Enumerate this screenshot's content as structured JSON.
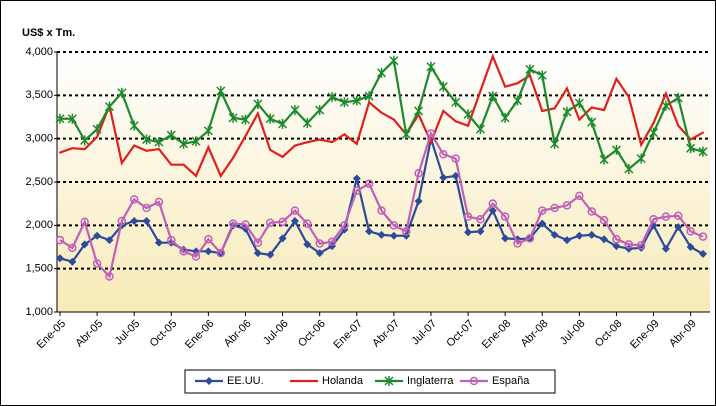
{
  "chart_data": {
    "type": "line",
    "y_label": "US$ x Tm.",
    "categories": [
      "Ene-05",
      null,
      null,
      "Abr-05",
      null,
      null,
      "Jul-05",
      null,
      null,
      "Oct-05",
      null,
      null,
      "Ene-06",
      null,
      null,
      "Abr-06",
      null,
      null,
      "Jul-06",
      null,
      null,
      "Oct-06",
      null,
      null,
      "Ene-07",
      null,
      null,
      "Abr-07",
      null,
      null,
      "Jul-07",
      null,
      null,
      "Oct-07",
      null,
      null,
      "Ene-08",
      null,
      null,
      "Abr-08",
      null,
      null,
      "Jul-08",
      null,
      null,
      "Oct-08",
      null,
      null,
      "Ene-09",
      null,
      null,
      "Abr-09",
      null
    ],
    "series": [
      {
        "name": "EE.UU.",
        "color": "#2e4b9b",
        "marker": "diamond",
        "values": [
          1620,
          1580,
          1780,
          1880,
          1830,
          2000,
          2050,
          2050,
          1800,
          1800,
          1720,
          1700,
          1700,
          1680,
          2000,
          1960,
          1680,
          1660,
          1850,
          2050,
          1780,
          1680,
          1760,
          1950,
          2540,
          1930,
          1890,
          1880,
          1880,
          2280,
          3000,
          2550,
          2570,
          1920,
          1930,
          2170,
          1850,
          1840,
          1850,
          2020,
          1890,
          1830,
          1880,
          1890,
          1840,
          1760,
          1730,
          1740,
          2000,
          1730,
          1980,
          1750,
          1670
        ]
      },
      {
        "name": "Holanda",
        "color": "#e0201b",
        "marker": "none",
        "values": [
          2840,
          2890,
          2880,
          3020,
          3380,
          2720,
          2920,
          2860,
          2880,
          2700,
          2700,
          2570,
          2900,
          2570,
          2780,
          3030,
          3290,
          2870,
          2790,
          2920,
          2960,
          2990,
          2960,
          3050,
          2940,
          3420,
          3300,
          3220,
          3050,
          3280,
          2960,
          3320,
          3200,
          3150,
          3550,
          3950,
          3600,
          3640,
          3730,
          3320,
          3350,
          3580,
          3220,
          3360,
          3330,
          3690,
          3480,
          2930,
          3180,
          3520,
          3150,
          2990,
          3070
        ]
      },
      {
        "name": "Inglaterra",
        "color": "#1e8a2e",
        "marker": "star",
        "values": [
          3230,
          3230,
          2980,
          3110,
          3370,
          3530,
          3150,
          2990,
          2960,
          3040,
          2940,
          2970,
          3090,
          3550,
          3240,
          3220,
          3400,
          3230,
          3170,
          3330,
          3180,
          3330,
          3480,
          3420,
          3440,
          3490,
          3760,
          3900,
          3050,
          3320,
          3830,
          3600,
          3420,
          3280,
          3110,
          3490,
          3240,
          3440,
          3800,
          3730,
          2940,
          3310,
          3410,
          3190,
          2760,
          2870,
          2650,
          2770,
          3070,
          3380,
          3470,
          2890,
          2850
        ]
      },
      {
        "name": "España",
        "color": "#c060b8",
        "marker": "circle",
        "values": [
          1830,
          1740,
          2040,
          1560,
          1410,
          2050,
          2300,
          2200,
          2270,
          1830,
          1700,
          1640,
          1840,
          1680,
          2020,
          2010,
          1800,
          2030,
          2040,
          2170,
          2020,
          1790,
          1810,
          2000,
          2400,
          2480,
          2170,
          2000,
          1930,
          2600,
          3060,
          2820,
          2770,
          2100,
          2070,
          2250,
          2100,
          1790,
          1850,
          2170,
          2200,
          2230,
          2340,
          2160,
          2060,
          1840,
          1780,
          1770,
          2070,
          2100,
          2110,
          1930,
          1870
        ]
      }
    ],
    "ylim": [
      1000,
      4000
    ],
    "yticks": [
      {
        "value": 1000,
        "label": "1,000"
      },
      {
        "value": 1500,
        "label": "1,500"
      },
      {
        "value": 2000,
        "label": "2,000"
      },
      {
        "value": 2500,
        "label": "2,500"
      },
      {
        "value": 3000,
        "label": "3,000"
      },
      {
        "value": 3500,
        "label": "3,500"
      },
      {
        "value": 4000,
        "label": "4,000"
      }
    ],
    "grid": true,
    "legend": "bottom"
  }
}
